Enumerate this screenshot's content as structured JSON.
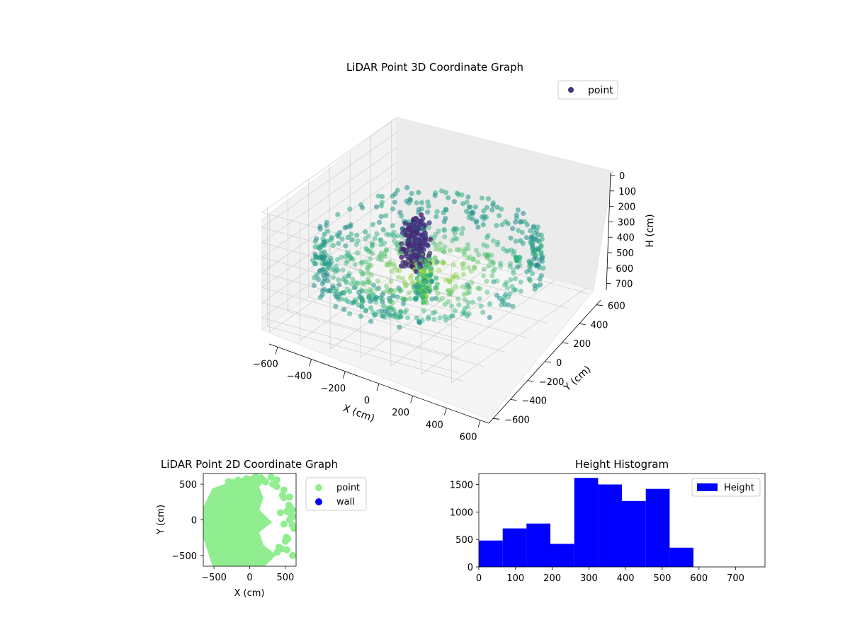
{
  "chart_data": [
    {
      "type": "scatter",
      "projection": "3d",
      "title": "LiDAR Point 3D Coordinate Graph",
      "xlabel": "X (cm)",
      "ylabel": "Y (cm)",
      "zlabel": "H (cm)",
      "xlim": [
        -650,
        650
      ],
      "ylim": [
        -650,
        650
      ],
      "zlim": [
        780,
        0
      ],
      "z_inverted": true,
      "xticks": [
        "−600",
        "−400",
        "−200",
        "0",
        "200",
        "400",
        "600"
      ],
      "yticks": [
        "−600",
        "−400",
        "−200",
        "0",
        "200",
        "400",
        "600"
      ],
      "zticks": [
        "0",
        "100",
        "200",
        "300",
        "400",
        "500",
        "600",
        "700"
      ],
      "legend": {
        "placement": "top-right",
        "entries": [
          {
            "label": "point",
            "color": "#46337e"
          }
        ]
      },
      "colormap": "viridis",
      "series": [
        {
          "name": "point",
          "description": "ring of points at radius ~600 cm with heights ~300–550 cm; cluster near x≈100,y≈300 at heights 0–300; outliers near x≈150,y≈-600"
        }
      ]
    },
    {
      "type": "scatter",
      "title": "LiDAR Point 2D Coordinate Graph",
      "xlabel": "X (cm)",
      "ylabel": "Y (cm)",
      "xlim": [
        -650,
        650
      ],
      "ylim": [
        -650,
        650
      ],
      "xticks": [
        "−500",
        "0",
        "500"
      ],
      "yticks": [
        "−500",
        "0",
        "500"
      ],
      "grid": false,
      "legend": {
        "placement": "outside-right",
        "entries": [
          {
            "label": "point",
            "color": "#90ee90"
          },
          {
            "label": "wall",
            "color": "#0000ff"
          }
        ]
      }
    },
    {
      "type": "bar",
      "subtype": "histogram",
      "title": "Height Histogram",
      "xlim": [
        0,
        780
      ],
      "ylim": [
        0,
        1700
      ],
      "xticks": [
        "0",
        "100",
        "200",
        "300",
        "400",
        "500",
        "600",
        "700"
      ],
      "yticks": [
        "0",
        "500",
        "1000",
        "1500"
      ],
      "bin_edges": [
        0,
        65,
        130,
        195,
        260,
        325,
        390,
        455,
        520,
        585,
        650,
        715,
        780
      ],
      "values": [
        480,
        700,
        790,
        420,
        1620,
        1500,
        1200,
        1420,
        350,
        0,
        0,
        0
      ],
      "color": "#0000ff",
      "legend": {
        "placement": "top-right",
        "entries": [
          {
            "label": "Height",
            "color": "#0000ff"
          }
        ]
      }
    }
  ]
}
